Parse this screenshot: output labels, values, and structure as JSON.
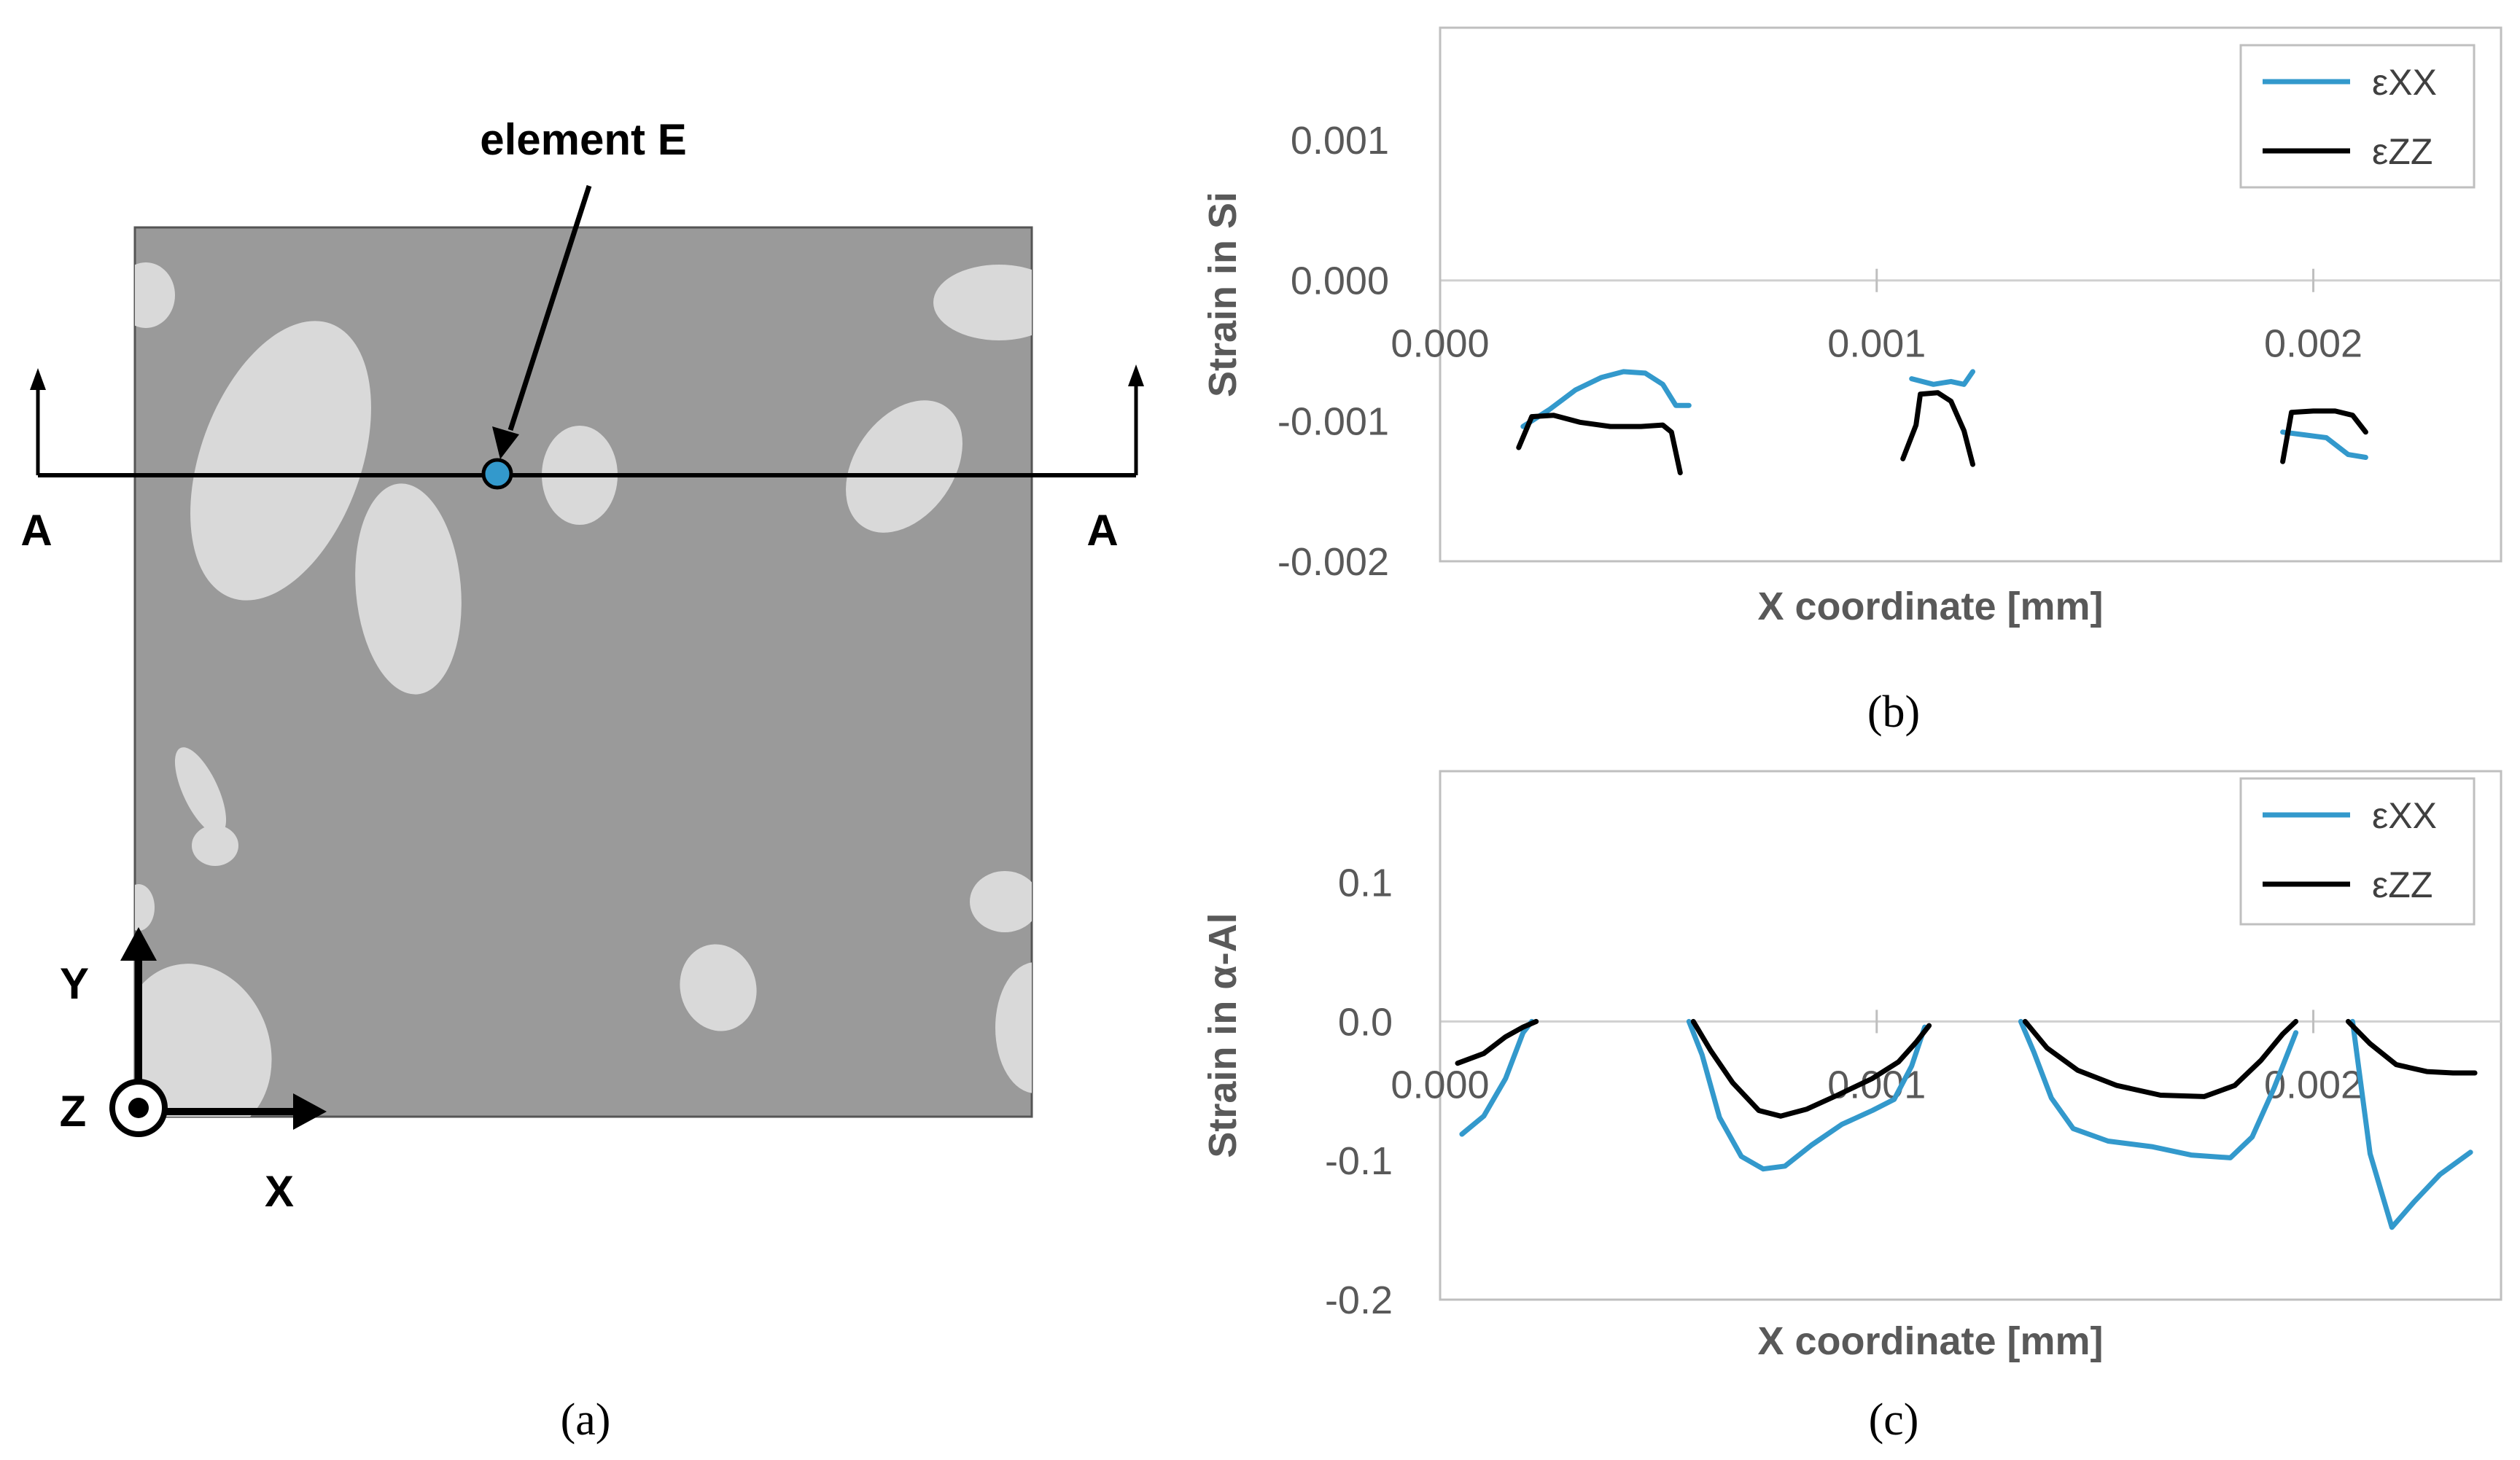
{
  "figure_a": {
    "element_label": "element E",
    "section_left_label": "A",
    "section_right_label": "A",
    "axis_y_label": "Y",
    "axis_z_label": "Z",
    "axis_x_label": "X",
    "caption": "(a)",
    "matrix_color": "#9a9a9a",
    "particle_color": "#d9d9d9",
    "marker_color": "#3399cc"
  },
  "chart_data": [
    {
      "id": "b",
      "type": "line",
      "caption": "(b)",
      "xlabel": "X coordinate [mm]",
      "ylabel": "Strain in Si",
      "xlim": [
        0.0,
        0.00243
      ],
      "ylim": [
        -0.002,
        0.0018
      ],
      "xticks": [
        0.0,
        0.001,
        0.002
      ],
      "xtick_labels": [
        "0.000",
        "0.001",
        "0.002"
      ],
      "yticks": [
        0.001,
        0.0,
        -0.001,
        -0.002
      ],
      "ytick_labels": [
        "0.001",
        "0.000",
        "-0.001",
        "-0.002"
      ],
      "gridlines": [
        0.0
      ],
      "legend": "top-right",
      "series": [
        {
          "name": "εXX",
          "color": "#3399cc",
          "segments": [
            [
              [
                0.00019,
                -0.00104
              ],
              [
                0.00025,
                -0.00092
              ],
              [
                0.00031,
                -0.00078
              ],
              [
                0.00037,
                -0.00069
              ],
              [
                0.00042,
                -0.00065
              ],
              [
                0.00047,
                -0.00066
              ],
              [
                0.00051,
                -0.00074
              ],
              [
                0.00054,
                -0.00089
              ],
              [
                0.00057,
                -0.00089
              ]
            ],
            [
              [
                0.00108,
                -0.0007
              ],
              [
                0.00113,
                -0.00074
              ],
              [
                0.00117,
                -0.00072
              ],
              [
                0.0012,
                -0.00074
              ],
              [
                0.00122,
                -0.00065
              ]
            ],
            [
              [
                0.00193,
                -0.00108
              ],
              [
                0.00198,
                -0.0011
              ],
              [
                0.00203,
                -0.00112
              ],
              [
                0.00208,
                -0.00124
              ],
              [
                0.00212,
                -0.00126
              ]
            ]
          ]
        },
        {
          "name": "εZZ",
          "color": "#000000",
          "segments": [
            [
              [
                0.00018,
                -0.00119
              ],
              [
                0.00021,
                -0.00097
              ],
              [
                0.00026,
                -0.00096
              ],
              [
                0.00032,
                -0.00101
              ],
              [
                0.00039,
                -0.00104
              ],
              [
                0.00046,
                -0.00104
              ],
              [
                0.00051,
                -0.00103
              ],
              [
                0.00053,
                -0.00108
              ],
              [
                0.00055,
                -0.00137
              ]
            ],
            [
              [
                0.00106,
                -0.00127
              ],
              [
                0.00109,
                -0.00103
              ],
              [
                0.0011,
                -0.00081
              ],
              [
                0.00114,
                -0.0008
              ],
              [
                0.00117,
                -0.00086
              ],
              [
                0.0012,
                -0.00107
              ],
              [
                0.00122,
                -0.00131
              ]
            ],
            [
              [
                0.00193,
                -0.00129
              ],
              [
                0.00195,
                -0.00094
              ],
              [
                0.002,
                -0.00093
              ],
              [
                0.00205,
                -0.00093
              ],
              [
                0.00209,
                -0.00096
              ],
              [
                0.00212,
                -0.00108
              ]
            ]
          ]
        }
      ]
    },
    {
      "id": "c",
      "type": "line",
      "caption": "(c)",
      "xlabel": "X coordinate [mm]",
      "ylabel": "Strain in α-Al",
      "xlim": [
        0.0,
        0.00243
      ],
      "ylim": [
        -0.2,
        0.18
      ],
      "xticks": [
        0.0,
        0.001,
        0.002
      ],
      "xtick_labels": [
        "0.000",
        "0.001",
        "0.002"
      ],
      "yticks": [
        0.1,
        0.0,
        -0.1,
        -0.2
      ],
      "ytick_labels": [
        "0.1",
        "0.0",
        "-0.1",
        "-0.2"
      ],
      "gridlines": [
        0.0
      ],
      "legend": "top-right",
      "series": [
        {
          "name": "εXX",
          "color": "#3399cc",
          "segments": [
            [
              [
                5e-05,
                -0.081
              ],
              [
                0.0001,
                -0.068
              ],
              [
                0.00015,
                -0.041
              ],
              [
                0.00019,
                -0.008
              ],
              [
                0.00021,
                0.0
              ]
            ],
            [
              [
                0.00057,
                0.0
              ],
              [
                0.0006,
                -0.024
              ],
              [
                0.00064,
                -0.069
              ],
              [
                0.00069,
                -0.097
              ],
              [
                0.00074,
                -0.106
              ],
              [
                0.00079,
                -0.104
              ],
              [
                0.00085,
                -0.089
              ],
              [
                0.00092,
                -0.074
              ],
              [
                0.00099,
                -0.064
              ],
              [
                0.00104,
                -0.056
              ],
              [
                0.00108,
                -0.032
              ],
              [
                0.00111,
                -0.004
              ]
            ],
            [
              [
                0.00133,
                0.0
              ],
              [
                0.00136,
                -0.022
              ],
              [
                0.0014,
                -0.055
              ],
              [
                0.00145,
                -0.077
              ],
              [
                0.00153,
                -0.086
              ],
              [
                0.00163,
                -0.09
              ],
              [
                0.00172,
                -0.096
              ],
              [
                0.00181,
                -0.098
              ],
              [
                0.00186,
                -0.083
              ],
              [
                0.00191,
                -0.048
              ],
              [
                0.00196,
                -0.008
              ]
            ],
            [
              [
                0.00209,
                0.0
              ],
              [
                0.00213,
                -0.095
              ],
              [
                0.00218,
                -0.148
              ],
              [
                0.00223,
                -0.13
              ],
              [
                0.00229,
                -0.11
              ],
              [
                0.00236,
                -0.094
              ]
            ]
          ]
        },
        {
          "name": "εZZ",
          "color": "#000000",
          "segments": [
            [
              [
                4e-05,
                -0.03
              ],
              [
                0.0001,
                -0.023
              ],
              [
                0.00015,
                -0.011
              ],
              [
                0.00019,
                -0.004
              ],
              [
                0.00022,
                0.0
              ]
            ],
            [
              [
                0.00058,
                0.0
              ],
              [
                0.00062,
                -0.021
              ],
              [
                0.00067,
                -0.044
              ],
              [
                0.00073,
                -0.064
              ],
              [
                0.00078,
                -0.068
              ],
              [
                0.00084,
                -0.063
              ],
              [
                0.00091,
                -0.053
              ],
              [
                0.00099,
                -0.041
              ],
              [
                0.00105,
                -0.029
              ],
              [
                0.00109,
                -0.015
              ],
              [
                0.00112,
                -0.003
              ]
            ],
            [
              [
                0.00134,
                0.0
              ],
              [
                0.00139,
                -0.019
              ],
              [
                0.00146,
                -0.035
              ],
              [
                0.00155,
                -0.046
              ],
              [
                0.00165,
                -0.053
              ],
              [
                0.00175,
                -0.054
              ],
              [
                0.00182,
                -0.046
              ],
              [
                0.00188,
                -0.028
              ],
              [
                0.00193,
                -0.009
              ],
              [
                0.00196,
                0.0
              ]
            ],
            [
              [
                0.00208,
                0.0
              ],
              [
                0.00213,
                -0.016
              ],
              [
                0.00219,
                -0.031
              ],
              [
                0.00226,
                -0.036
              ],
              [
                0.00232,
                -0.037
              ],
              [
                0.00237,
                -0.037
              ]
            ]
          ]
        }
      ]
    }
  ]
}
